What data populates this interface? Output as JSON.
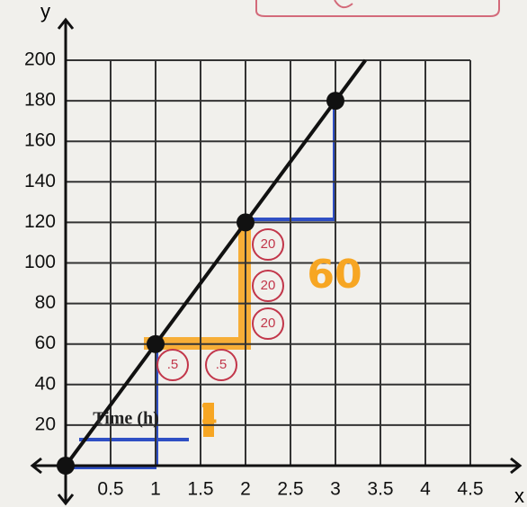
{
  "chart_data": {
    "type": "line",
    "x_label": "x",
    "y_label": "y",
    "x": [
      0,
      1,
      2,
      3
    ],
    "values": [
      0,
      60,
      120,
      180
    ],
    "color": "#111111",
    "xlim": [
      0,
      4.5
    ],
    "ylim": [
      0,
      200
    ],
    "xticks": [
      0.5,
      1,
      1.5,
      2,
      2.5,
      3,
      3.5,
      4,
      4.5
    ],
    "yticks": [
      20,
      40,
      60,
      80,
      100,
      120,
      140,
      160,
      180,
      200
    ],
    "grid": true,
    "annotations": [
      "Time (h)",
      "60",
      "1",
      "20",
      "20",
      "20",
      ".5",
      ".5"
    ]
  }
}
